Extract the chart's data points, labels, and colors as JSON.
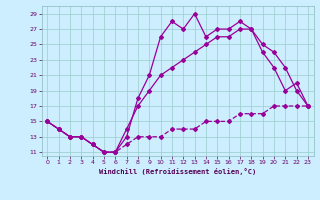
{
  "xlabel": "Windchill (Refroidissement éolien,°C)",
  "bg_color": "#cceeff",
  "line_color": "#990099",
  "grid_color": "#99cccc",
  "xlim": [
    -0.5,
    23.5
  ],
  "ylim": [
    10.5,
    30
  ],
  "xticks": [
    0,
    1,
    2,
    3,
    4,
    5,
    6,
    7,
    8,
    9,
    10,
    11,
    12,
    13,
    14,
    15,
    16,
    17,
    18,
    19,
    20,
    21,
    22,
    23
  ],
  "yticks": [
    11,
    13,
    15,
    17,
    19,
    21,
    23,
    25,
    27,
    29
  ],
  "line1_x": [
    0,
    1,
    2,
    3,
    4,
    5,
    6,
    7,
    8,
    9,
    10,
    11,
    12,
    13,
    14,
    15,
    16,
    17,
    18,
    19,
    20,
    21,
    22,
    23
  ],
  "line1_y": [
    15,
    14,
    13,
    13,
    12,
    11,
    11,
    13,
    18,
    21,
    26,
    28,
    27,
    29,
    26,
    27,
    27,
    28,
    27,
    25,
    24,
    22,
    19,
    17
  ],
  "line2_x": [
    0,
    1,
    2,
    3,
    4,
    5,
    6,
    7,
    8,
    9,
    10,
    11,
    12,
    13,
    14,
    15,
    16,
    17,
    18,
    19,
    20,
    21,
    22,
    23
  ],
  "line2_y": [
    15,
    14,
    13,
    13,
    12,
    11,
    11,
    14,
    17,
    19,
    21,
    22,
    23,
    24,
    25,
    26,
    26,
    27,
    27,
    24,
    22,
    19,
    20,
    17
  ],
  "line3_x": [
    0,
    1,
    2,
    3,
    4,
    5,
    6,
    7,
    8,
    9,
    10,
    11,
    12,
    13,
    14,
    15,
    16,
    17,
    18,
    19,
    20,
    21,
    22,
    23
  ],
  "line3_y": [
    15,
    14,
    13,
    13,
    12,
    11,
    11,
    12,
    13,
    13,
    13,
    14,
    14,
    14,
    15,
    15,
    15,
    16,
    16,
    16,
    17,
    17,
    17,
    17
  ]
}
